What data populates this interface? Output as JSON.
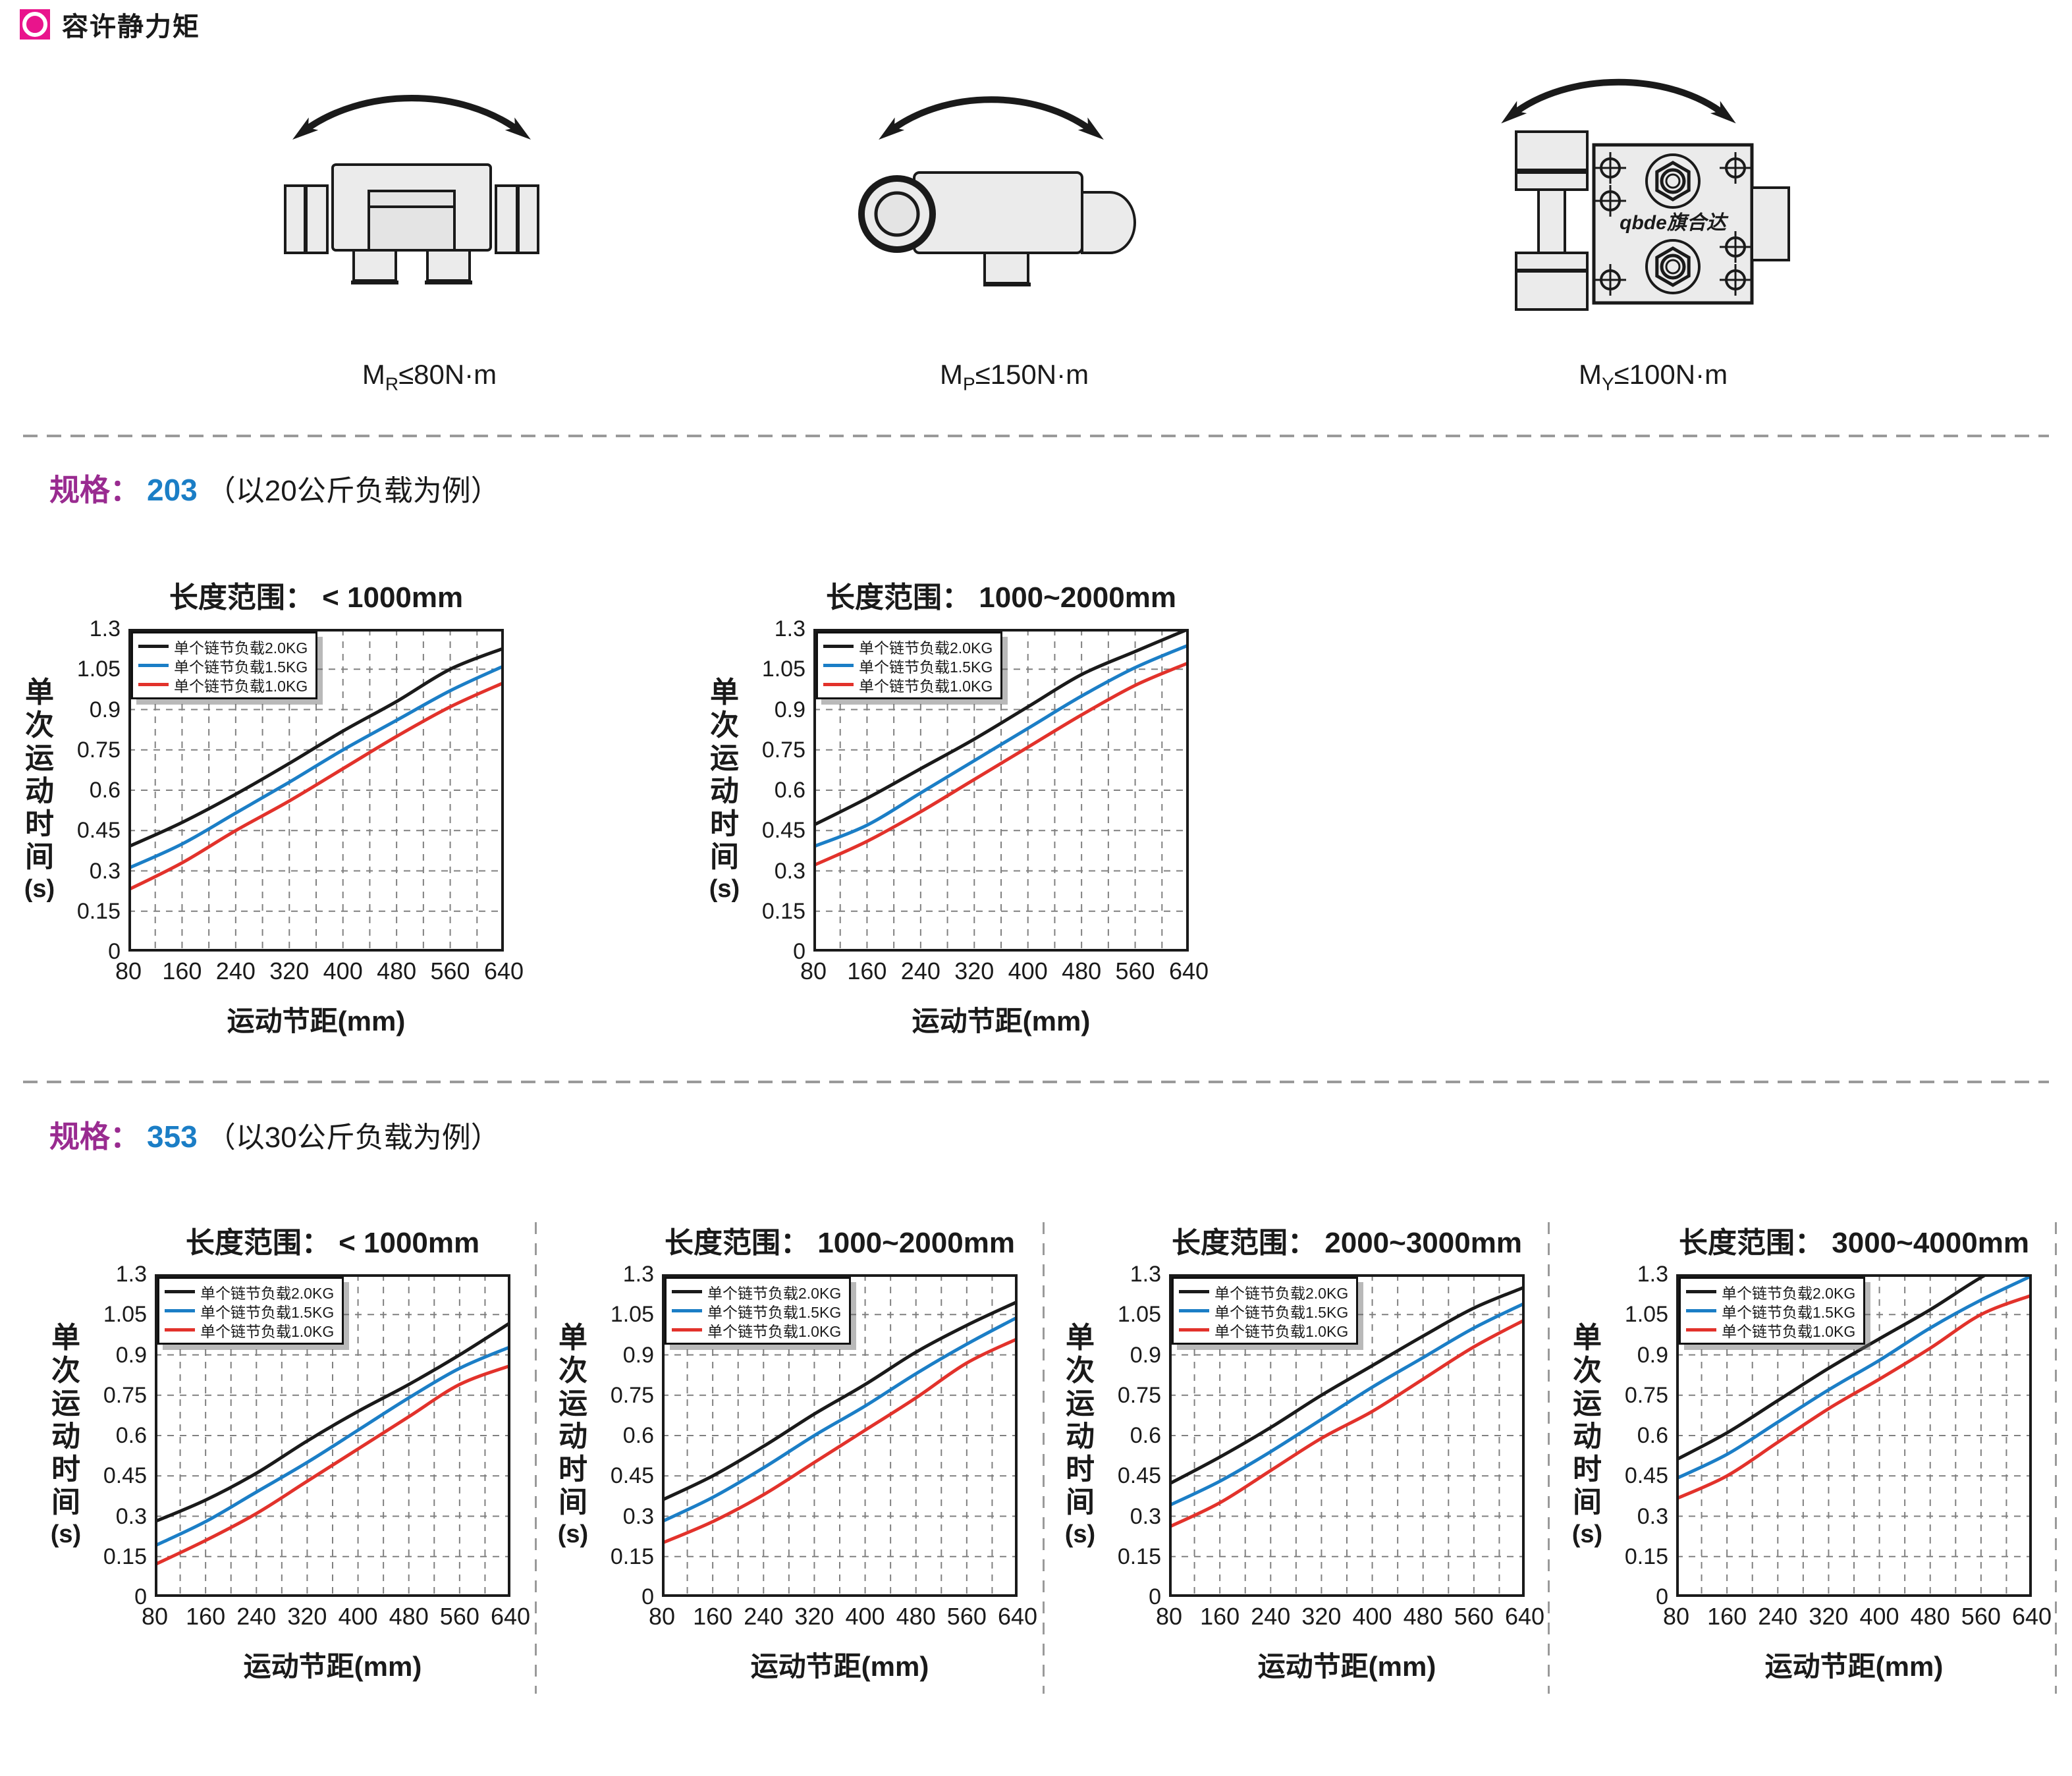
{
  "page": {
    "title": "容许静力矩"
  },
  "moments": [
    {
      "prefix": "M",
      "sub": "R",
      "value": "≤80N·m"
    },
    {
      "prefix": "M",
      "sub": "P",
      "value": "≤150N·m"
    },
    {
      "prefix": "M",
      "sub": "Y",
      "value": "≤100N·m"
    }
  ],
  "brand_logo": "qbde旗合达",
  "sections": [
    {
      "spec_label": "规格：",
      "spec_value": "203",
      "note": "（以20公斤负载为例）"
    },
    {
      "spec_label": "规格：",
      "spec_value": "353",
      "note": "（以30公斤负载为例）"
    }
  ],
  "colors": {
    "accent_pink": "#e9148c",
    "spec_purple": "#992b90",
    "spec_blue": "#1b7ec6",
    "series_black": "#1a1a1a",
    "series_blue": "#1b7ec6",
    "series_red": "#e2322b",
    "grid_gray": "#808080"
  },
  "chart_common": {
    "ylabel_chars": "单次运动时间",
    "ylabel_unit": "(s)",
    "xlabel": "运动节距(mm)",
    "range_label": "长度范围：",
    "x_ticks": [
      80,
      160,
      240,
      320,
      400,
      480,
      560,
      640
    ],
    "y_ticks": [
      0,
      0.15,
      0.3,
      0.45,
      0.6,
      0.75,
      0.9,
      1.05,
      1.3
    ],
    "grid": "dashed",
    "legend_position": "top-left",
    "legend": [
      {
        "label": "单个链节负载2.0KG",
        "color_key": "series_black"
      },
      {
        "label": "单个链节负载1.5KG",
        "color_key": "series_blue"
      },
      {
        "label": "单个链节负载1.0KG",
        "color_key": "series_red"
      }
    ]
  },
  "chart_data": [
    {
      "type": "line",
      "section": "203",
      "range": "< 1000mm",
      "x": [
        80,
        160,
        240,
        320,
        400,
        480,
        560,
        640
      ],
      "xlabel": "运动节距(mm)",
      "ylabel": "单次运动时间(s)",
      "ylim": [
        0,
        1.3
      ],
      "series": [
        {
          "name": "单个链节负载2.0KG",
          "color_key": "series_black",
          "values": [
            0.39,
            0.48,
            0.585,
            0.7,
            0.82,
            0.93,
            1.05,
            1.18
          ]
        },
        {
          "name": "单个链节负载1.5KG",
          "color_key": "series_blue",
          "values": [
            0.31,
            0.4,
            0.515,
            0.63,
            0.75,
            0.86,
            0.97,
            1.07
          ]
        },
        {
          "name": "单个链节负载1.0KG",
          "color_key": "series_red",
          "values": [
            0.23,
            0.33,
            0.45,
            0.56,
            0.68,
            0.8,
            0.91,
            1.0
          ]
        }
      ]
    },
    {
      "type": "line",
      "section": "203",
      "range": "1000~2000mm",
      "x": [
        80,
        160,
        240,
        320,
        400,
        480,
        560,
        640
      ],
      "xlabel": "运动节距(mm)",
      "ylabel": "单次运动时间(s)",
      "ylim": [
        0,
        1.3
      ],
      "series": [
        {
          "name": "单个链节负载2.0KG",
          "color_key": "series_black",
          "values": [
            0.47,
            0.57,
            0.68,
            0.79,
            0.91,
            1.03,
            1.16,
            1.3
          ]
        },
        {
          "name": "单个链节负载1.5KG",
          "color_key": "series_blue",
          "values": [
            0.39,
            0.47,
            0.59,
            0.71,
            0.83,
            0.95,
            1.06,
            1.2
          ]
        },
        {
          "name": "单个链节负载1.0KG",
          "color_key": "series_red",
          "values": [
            0.32,
            0.41,
            0.52,
            0.64,
            0.76,
            0.88,
            0.99,
            1.09
          ]
        }
      ]
    },
    {
      "type": "line",
      "section": "353",
      "range": "< 1000mm",
      "x": [
        80,
        160,
        240,
        320,
        400,
        480,
        560,
        640
      ],
      "xlabel": "运动节距(mm)",
      "ylabel": "单次运动时间(s)",
      "ylim": [
        0,
        1.3
      ],
      "series": [
        {
          "name": "单个链节负载2.0KG",
          "color_key": "series_black",
          "values": [
            0.28,
            0.36,
            0.46,
            0.58,
            0.69,
            0.79,
            0.9,
            1.02
          ]
        },
        {
          "name": "单个链节负载1.5KG",
          "color_key": "series_blue",
          "values": [
            0.19,
            0.28,
            0.39,
            0.5,
            0.62,
            0.74,
            0.85,
            0.93
          ]
        },
        {
          "name": "单个链节负载1.0KG",
          "color_key": "series_red",
          "values": [
            0.12,
            0.21,
            0.31,
            0.43,
            0.55,
            0.67,
            0.79,
            0.86
          ]
        }
      ]
    },
    {
      "type": "line",
      "section": "353",
      "range": "1000~2000mm",
      "x": [
        80,
        160,
        240,
        320,
        400,
        480,
        560,
        640
      ],
      "xlabel": "运动节距(mm)",
      "ylabel": "单次运动时间(s)",
      "ylim": [
        0,
        1.3
      ],
      "series": [
        {
          "name": "单个链节负载2.0KG",
          "color_key": "series_black",
          "values": [
            0.36,
            0.45,
            0.56,
            0.68,
            0.79,
            0.91,
            1.01,
            1.13
          ]
        },
        {
          "name": "单个链节负载1.5KG",
          "color_key": "series_blue",
          "values": [
            0.28,
            0.37,
            0.48,
            0.6,
            0.71,
            0.83,
            0.94,
            1.04
          ]
        },
        {
          "name": "单个链节负载1.0KG",
          "color_key": "series_red",
          "values": [
            0.2,
            0.28,
            0.38,
            0.5,
            0.62,
            0.74,
            0.87,
            0.96
          ]
        }
      ]
    },
    {
      "type": "line",
      "section": "353",
      "range": "2000~3000mm",
      "x": [
        80,
        160,
        240,
        320,
        400,
        480,
        560,
        640
      ],
      "xlabel": "运动节距(mm)",
      "ylabel": "单次运动时间(s)",
      "ylim": [
        0,
        1.3
      ],
      "series": [
        {
          "name": "单个链节负载2.0KG",
          "color_key": "series_black",
          "values": [
            0.42,
            0.52,
            0.63,
            0.75,
            0.86,
            0.97,
            1.09,
            1.22
          ]
        },
        {
          "name": "单个链节负载1.5KG",
          "color_key": "series_blue",
          "values": [
            0.34,
            0.43,
            0.54,
            0.66,
            0.78,
            0.89,
            1.0,
            1.12
          ]
        },
        {
          "name": "单个链节负载1.0KG",
          "color_key": "series_red",
          "values": [
            0.26,
            0.35,
            0.47,
            0.59,
            0.69,
            0.81,
            0.93,
            1.03
          ]
        }
      ]
    },
    {
      "type": "line",
      "section": "353",
      "range": "3000~4000mm",
      "x": [
        80,
        160,
        240,
        320,
        400,
        480,
        560,
        640
      ],
      "xlabel": "运动节距(mm)",
      "ylabel": "单次运动时间(s)",
      "ylim": [
        0,
        1.3
      ],
      "series": [
        {
          "name": "单个链节负载2.0KG",
          "color_key": "series_black",
          "values": [
            0.51,
            0.61,
            0.73,
            0.85,
            0.96,
            1.08,
            1.28,
            1.45
          ]
        },
        {
          "name": "单个链节负载1.5KG",
          "color_key": "series_blue",
          "values": [
            0.44,
            0.53,
            0.65,
            0.77,
            0.88,
            1.0,
            1.14,
            1.29
          ]
        },
        {
          "name": "单个链节负载1.0KG",
          "color_key": "series_red",
          "values": [
            0.365,
            0.45,
            0.575,
            0.7,
            0.81,
            0.925,
            1.05,
            1.17
          ]
        }
      ]
    }
  ]
}
